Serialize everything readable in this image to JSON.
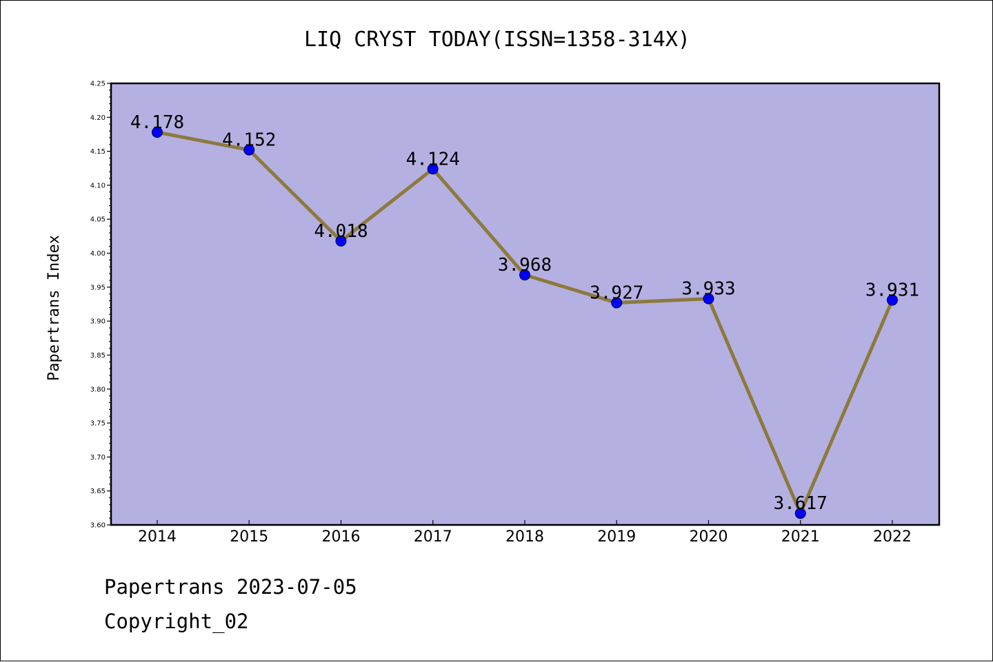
{
  "chart_data": {
    "type": "line",
    "title": "LIQ CRYST TODAY(ISSN=1358-314X)",
    "ylabel": "Papertrans Index",
    "xlabel": "",
    "categories": [
      "2014",
      "2015",
      "2016",
      "2017",
      "2018",
      "2019",
      "2020",
      "2021",
      "2022"
    ],
    "values": [
      4.178,
      4.152,
      4.018,
      4.124,
      3.968,
      3.927,
      3.933,
      3.617,
      3.931
    ],
    "data_labels": [
      "4.178",
      "4.152",
      "4.018",
      "4.124",
      "3.968",
      "3.927",
      "3.933",
      "3.617",
      "3.931"
    ],
    "ylim": [
      3.6,
      4.25
    ],
    "yticks": [
      "3.60",
      "3.65",
      "3.70",
      "3.75",
      "3.80",
      "3.85",
      "3.90",
      "3.95",
      "4.00",
      "4.05",
      "4.10",
      "4.15",
      "4.20",
      "4.25"
    ],
    "grid": false,
    "legend": "none",
    "colors": {
      "plot_background": "#b5b0e2",
      "line": "#8c7a3c",
      "marker": "#0000ff"
    }
  },
  "footer": {
    "line1": "Papertrans 2023-07-05",
    "line2": "Copyright_02"
  }
}
